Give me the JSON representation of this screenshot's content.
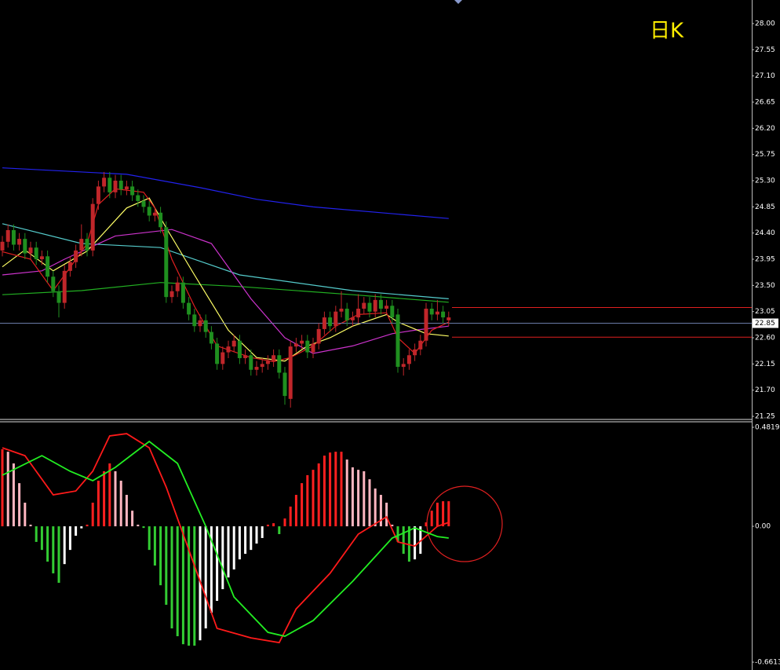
{
  "chart_data": [
    {
      "type": "candlestick",
      "title": "日K",
      "open": [
        24.1,
        24.25,
        24.45,
        24.2,
        24.3,
        24.05,
        24.15,
        23.95,
        24.0,
        23.65,
        23.4,
        23.2,
        23.75,
        23.9,
        24.1,
        24.3,
        24.1,
        24.9,
        25.2,
        25.35,
        25.1,
        25.3,
        25.15,
        25.2,
        25.05,
        24.95,
        24.85,
        24.7,
        24.75,
        24.5,
        23.3,
        23.4,
        23.55,
        23.2,
        23.0,
        22.8,
        22.9,
        22.7,
        22.5,
        22.15,
        22.35,
        22.45,
        22.55,
        22.25,
        22.3,
        22.05,
        22.1,
        22.15,
        22.2,
        22.3,
        22.0,
        21.55,
        22.45,
        22.5,
        22.55,
        22.35,
        22.5,
        22.75,
        22.95,
        22.8,
        23.05,
        23.1,
        22.9,
        22.95,
        23.1,
        23.2,
        23.05,
        23.25,
        23.1,
        23.15,
        23.0,
        22.1,
        22.15,
        22.3,
        22.4,
        22.55,
        23.1,
        23.0,
        23.05,
        22.9
      ],
      "high": [
        24.35,
        24.55,
        24.55,
        24.4,
        24.4,
        24.25,
        24.25,
        24.1,
        24.1,
        23.75,
        23.5,
        23.85,
        24.0,
        24.2,
        24.55,
        24.4,
        25.0,
        25.3,
        25.45,
        25.45,
        25.4,
        25.4,
        25.3,
        25.3,
        25.15,
        25.05,
        24.95,
        24.85,
        24.85,
        24.6,
        23.5,
        23.65,
        23.65,
        23.3,
        23.1,
        23.0,
        23.0,
        22.8,
        22.6,
        22.45,
        22.55,
        22.65,
        22.65,
        22.4,
        22.4,
        22.2,
        22.25,
        22.3,
        22.4,
        22.4,
        22.1,
        22.55,
        22.6,
        22.65,
        22.65,
        22.6,
        22.85,
        23.05,
        23.05,
        23.15,
        23.4,
        23.2,
        23.05,
        23.35,
        23.3,
        23.3,
        23.35,
        23.35,
        23.25,
        23.25,
        23.1,
        22.25,
        22.4,
        22.5,
        22.65,
        23.2,
        23.2,
        23.25,
        23.15,
        23.05
      ],
      "low": [
        24.0,
        24.15,
        24.1,
        24.1,
        23.95,
        23.95,
        23.85,
        23.85,
        23.55,
        23.3,
        22.95,
        23.1,
        23.65,
        23.8,
        24.0,
        24.0,
        24.0,
        24.8,
        25.1,
        25.0,
        25.0,
        25.05,
        25.05,
        24.95,
        24.85,
        24.75,
        24.6,
        24.6,
        24.4,
        23.2,
        23.2,
        23.3,
        23.1,
        22.9,
        22.7,
        22.7,
        22.6,
        22.4,
        22.05,
        22.05,
        22.25,
        22.35,
        22.15,
        22.15,
        21.95,
        21.95,
        22.0,
        22.05,
        22.1,
        21.9,
        21.45,
        21.4,
        22.35,
        22.4,
        22.25,
        22.25,
        22.4,
        22.65,
        22.7,
        22.7,
        22.95,
        22.8,
        22.8,
        22.85,
        23.0,
        22.95,
        22.95,
        23.0,
        23.0,
        22.85,
        22.0,
        21.95,
        22.05,
        22.2,
        22.3,
        22.45,
        22.9,
        22.9,
        22.85,
        22.8
      ],
      "close": [
        24.25,
        24.45,
        24.2,
        24.3,
        24.05,
        24.15,
        23.95,
        24.0,
        23.65,
        23.4,
        23.2,
        23.75,
        23.9,
        24.1,
        24.3,
        24.1,
        24.9,
        25.2,
        25.35,
        25.1,
        25.3,
        25.15,
        25.2,
        25.05,
        24.95,
        24.85,
        24.7,
        24.75,
        24.5,
        23.3,
        23.4,
        23.55,
        23.2,
        23.0,
        22.8,
        22.9,
        22.7,
        22.5,
        22.15,
        22.35,
        22.45,
        22.55,
        22.25,
        22.3,
        22.05,
        22.1,
        22.15,
        22.2,
        22.3,
        22.0,
        21.6,
        22.45,
        22.5,
        22.55,
        22.35,
        22.5,
        22.75,
        22.95,
        22.8,
        23.05,
        23.1,
        22.9,
        22.95,
        23.1,
        23.2,
        23.05,
        23.25,
        23.1,
        23.15,
        22.95,
        22.1,
        22.15,
        22.3,
        22.4,
        22.55,
        23.1,
        23.0,
        23.05,
        22.95,
        22.95
      ],
      "up_color": "#c0262a",
      "down_color": "#1f8f1f",
      "overlays": [
        {
          "color": "#2222ee",
          "x": [
            0,
            22,
            35,
            45,
            55,
            79
          ],
          "values": [
            25.52,
            25.41,
            25.18,
            24.98,
            24.85,
            24.65
          ]
        },
        {
          "color": "#55cccc",
          "x": [
            0,
            14,
            28,
            42,
            62,
            79
          ],
          "values": [
            24.56,
            24.22,
            24.15,
            23.68,
            23.41,
            23.27
          ]
        },
        {
          "color": "#22b022",
          "x": [
            0,
            14,
            28,
            42,
            62,
            79
          ],
          "values": [
            23.34,
            23.41,
            23.55,
            23.48,
            23.34,
            23.21
          ]
        },
        {
          "color": "#cc33cc",
          "x": [
            0,
            7,
            11,
            20,
            30,
            37,
            44,
            50,
            55,
            62,
            69,
            73,
            79
          ],
          "values": [
            23.68,
            23.75,
            23.95,
            24.35,
            24.46,
            24.22,
            23.27,
            22.6,
            22.33,
            22.46,
            22.67,
            22.73,
            22.8
          ]
        },
        {
          "color": "#ffff66",
          "x": [
            0,
            4,
            9,
            15,
            22,
            26,
            29,
            34,
            40,
            45,
            50,
            54,
            58,
            62,
            68,
            70,
            75,
            79
          ],
          "values": [
            23.82,
            24.11,
            23.75,
            24.09,
            24.83,
            25.0,
            24.49,
            23.68,
            22.73,
            22.26,
            22.2,
            22.46,
            22.6,
            22.8,
            23.0,
            22.87,
            22.67,
            22.63
          ]
        },
        {
          "color": "#e02020",
          "x": [
            0,
            5,
            9,
            12,
            15,
            17,
            20,
            25,
            27,
            30,
            34,
            38,
            44,
            48,
            51,
            55,
            59,
            63,
            68,
            70,
            73,
            76,
            79
          ],
          "values": [
            24.08,
            23.95,
            23.41,
            23.81,
            24.22,
            24.89,
            25.16,
            25.1,
            24.83,
            23.95,
            23.14,
            22.46,
            22.26,
            22.19,
            22.26,
            22.46,
            22.8,
            23.0,
            23.03,
            22.6,
            22.33,
            22.73,
            22.87
          ]
        }
      ],
      "levels": [
        23.12,
        22.61
      ],
      "level_color": "#e02020",
      "last_price": 22.85,
      "last_price_color": "#6a7aa8",
      "ylim": [
        21.21,
        28.405
      ],
      "yticks": [
        {
          "value": 28.0,
          "label": "28.00"
        },
        27.55,
        {
          "value": 27.1,
          "label": "27.10"
        },
        26.65,
        {
          "value": 26.2,
          "label": "26.20"
        },
        25.75,
        {
          "value": 25.3,
          "label": "25.30"
        },
        24.85,
        {
          "value": 24.4,
          "label": "24.40"
        },
        23.95,
        {
          "value": 23.5,
          "label": "23.50"
        },
        23.05,
        {
          "value": 22.6,
          "label": "22.60"
        },
        22.15,
        {
          "value": 21.7,
          "label": "21.70"
        },
        21.25
      ]
    },
    {
      "type": "macd",
      "values": [
        0.375,
        0.363,
        0.306,
        0.21,
        0.115,
        0.008,
        -0.076,
        -0.115,
        -0.172,
        -0.229,
        -0.275,
        -0.184,
        -0.115,
        -0.046,
        -0.01,
        0.008,
        0.115,
        0.222,
        0.268,
        0.306,
        0.268,
        0.222,
        0.153,
        0.076,
        0.008,
        -0.008,
        -0.115,
        -0.191,
        -0.287,
        -0.382,
        -0.497,
        -0.535,
        -0.574,
        -0.581,
        -0.581,
        -0.555,
        -0.497,
        -0.421,
        -0.363,
        -0.306,
        -0.249,
        -0.21,
        -0.161,
        -0.134,
        -0.115,
        -0.084,
        -0.057,
        0.008,
        0.015,
        -0.038,
        0.038,
        0.096,
        0.153,
        0.21,
        0.249,
        0.275,
        0.306,
        0.344,
        0.359,
        0.363,
        0.363,
        0.325,
        0.287,
        0.275,
        0.268,
        0.229,
        0.184,
        0.153,
        0.115,
        0.008,
        -0.076,
        -0.134,
        -0.172,
        -0.161,
        -0.134,
        0.019,
        0.076,
        0.115,
        0.122,
        0.122
      ],
      "colors": {
        "up_rising": "#ff2020",
        "up_falling": "#ffb6c1",
        "down_falling": "#33cc33",
        "down_rising": "#ffffff"
      },
      "lines": [
        {
          "color": "#ff1a1a",
          "x": [
            0,
            4,
            9,
            13,
            16,
            19,
            22,
            26,
            29,
            33,
            38,
            44,
            49,
            52,
            58,
            63,
            68,
            70,
            73,
            77,
            79
          ],
          "values": [
            0.382,
            0.344,
            0.153,
            0.172,
            0.268,
            0.44,
            0.451,
            0.382,
            0.191,
            -0.115,
            -0.497,
            -0.543,
            -0.566,
            -0.402,
            -0.229,
            -0.038,
            0.046,
            -0.076,
            -0.096,
            0,
            0.019
          ]
        },
        {
          "color": "#22ee22",
          "x": [
            0,
            7,
            12,
            16,
            20,
            26,
            31,
            36,
            41,
            47,
            50,
            55,
            62,
            69,
            73,
            77,
            79
          ],
          "values": [
            0.249,
            0.344,
            0.268,
            0.222,
            0.287,
            0.413,
            0.306,
            0,
            -0.344,
            -0.516,
            -0.535,
            -0.459,
            -0.268,
            -0.057,
            -0.008,
            -0.05,
            -0.057
          ]
        }
      ],
      "ylim": [
        -0.6995,
        0.5087
      ],
      "yticks": [
        0.4819,
        {
          "value": 0,
          "label": "0.00"
        },
        -0.6613
      ]
    }
  ]
}
